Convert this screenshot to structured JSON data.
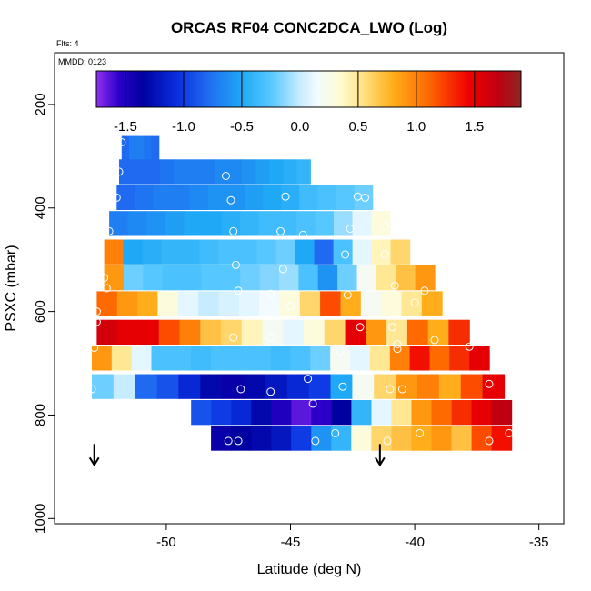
{
  "chart_data": {
    "type": "heatmap",
    "title": "ORCAS RF04 CONC2DCA_LWO (Log)",
    "annotations": [
      "Flts: 4",
      "MMDD: 0123"
    ],
    "xlabel": "Latitude (deg N)",
    "ylabel": "PSXC (mbar)",
    "xlim": [
      -54.5,
      -34
    ],
    "ylim": [
      1010,
      100
    ],
    "x_ticks": [
      -50,
      -45,
      -40,
      -35
    ],
    "x_tick_labels": [
      "-50",
      "-45",
      "-40",
      "-35"
    ],
    "y_ticks": [
      200,
      400,
      600,
      800,
      1000
    ],
    "y_tick_labels": [
      "200",
      "400",
      "600",
      "800",
      "1000"
    ],
    "colorbar": {
      "range": [
        -1.75,
        1.9
      ],
      "ticks": [
        -1.5,
        -1.0,
        -0.5,
        0.0,
        0.5,
        1.0,
        1.5
      ],
      "tick_labels": [
        "-1.5",
        "-1.0",
        "-0.5",
        "0.0",
        "0.5",
        "1.0",
        "1.5"
      ],
      "divisions": [
        -1.5,
        -1.0,
        -0.5,
        0.5,
        1.0,
        1.5
      ],
      "stops": [
        {
          "v": -1.75,
          "c": "#8f2ff0"
        },
        {
          "v": -1.55,
          "c": "#2a00c8"
        },
        {
          "v": -1.35,
          "c": "#0000a0"
        },
        {
          "v": -1.05,
          "c": "#0a2fe0"
        },
        {
          "v": -0.8,
          "c": "#1f6af0"
        },
        {
          "v": -0.5,
          "c": "#1fa8f5"
        },
        {
          "v": -0.25,
          "c": "#56c8ff"
        },
        {
          "v": 0.0,
          "c": "#c8ecff"
        },
        {
          "v": 0.15,
          "c": "#f2fbff"
        },
        {
          "v": 0.35,
          "c": "#fffbd0"
        },
        {
          "v": 0.55,
          "c": "#ffe080"
        },
        {
          "v": 0.8,
          "c": "#ffad1a"
        },
        {
          "v": 1.1,
          "c": "#ff6a00"
        },
        {
          "v": 1.45,
          "c": "#f00000"
        },
        {
          "v": 1.7,
          "c": "#c00010"
        },
        {
          "v": 1.9,
          "c": "#8f2525"
        }
      ]
    },
    "series": [
      {
        "p": 285,
        "lat0": -51.8,
        "lat1": -50.3,
        "vals": [
          -0.8,
          -0.7,
          -0.7,
          -0.75,
          -0.8
        ]
      },
      {
        "p": 330,
        "lat0": -51.9,
        "lat1": -44.2,
        "vals": [
          -0.8,
          -0.8,
          -0.8,
          -0.75,
          -0.7,
          -0.7,
          -0.7,
          -0.65,
          -0.65,
          -0.6,
          -0.55,
          -0.5,
          -0.45,
          -0.4
        ]
      },
      {
        "p": 380,
        "lat0": -52.0,
        "lat1": -41.7,
        "vals": [
          -0.8,
          -0.75,
          -0.7,
          -0.7,
          -0.65,
          -0.6,
          -0.6,
          -0.55,
          -0.5,
          -0.45,
          -0.35,
          -0.3,
          -0.25,
          -0.2
        ]
      },
      {
        "p": 430,
        "lat0": -52.3,
        "lat1": -41.0,
        "vals": [
          -0.7,
          -0.65,
          -0.6,
          -0.55,
          -0.5,
          -0.5,
          -0.45,
          -0.4,
          -0.35,
          -0.35,
          -0.3,
          -0.25,
          -0.1,
          0.1,
          0.3
        ]
      },
      {
        "p": 485,
        "lat0": -52.5,
        "lat1": -40.2,
        "vals": [
          1.0,
          -0.5,
          -0.45,
          -0.4,
          -0.4,
          -0.35,
          -0.3,
          -0.3,
          -0.25,
          -0.2,
          -0.5,
          -0.8,
          -0.3,
          0.1,
          0.4,
          0.6
        ]
      },
      {
        "p": 535,
        "lat0": -52.5,
        "lat1": -39.2,
        "vals": [
          0.9,
          -0.2,
          -0.25,
          -0.3,
          -0.3,
          -0.25,
          -0.25,
          -0.2,
          -0.15,
          -0.1,
          -0.3,
          -0.6,
          -0.2,
          0.2,
          0.5,
          0.7,
          0.9
        ]
      },
      {
        "p": 585,
        "lat0": -52.8,
        "lat1": -38.9,
        "vals": [
          1.1,
          0.9,
          0.8,
          0.3,
          0.1,
          0.0,
          0.05,
          0.1,
          0.15,
          0.3,
          0.6,
          1.2,
          0.8,
          0.2,
          0.3,
          0.5,
          0.8
        ]
      },
      {
        "p": 640,
        "lat0": -52.8,
        "lat1": -37.8,
        "vals": [
          1.6,
          1.5,
          1.5,
          1.2,
          1.0,
          0.7,
          0.6,
          0.4,
          0.2,
          0.1,
          0.3,
          0.6,
          1.5,
          0.9,
          0.5,
          1.1,
          0.8,
          1.3
        ]
      },
      {
        "p": 690,
        "lat0": -53.0,
        "lat1": -37.0,
        "vals": [
          0.9,
          0.5,
          0.1,
          -0.3,
          -0.3,
          -0.35,
          -0.3,
          -0.3,
          -0.3,
          -0.35,
          -0.3,
          -0.2,
          0.2,
          0.1,
          0.5,
          1.0,
          1.4,
          1.1,
          1.3,
          1.5
        ]
      },
      {
        "p": 745,
        "lat0": -53.0,
        "lat1": -36.4,
        "vals": [
          -0.2,
          0.0,
          -0.8,
          -0.9,
          -1.1,
          -1.3,
          -1.4,
          -1.3,
          -1.2,
          -1.1,
          -1.0,
          -0.5,
          0.2,
          0.6,
          0.9,
          1.0,
          0.8,
          1.2,
          1.5
        ]
      },
      {
        "p": 795,
        "lat0": -49.0,
        "lat1": -36.1,
        "vals": [
          -0.9,
          -1.0,
          -1.1,
          -1.3,
          -1.5,
          -1.65,
          -1.55,
          -1.35,
          -0.4,
          0.1,
          0.5,
          0.9,
          1.1,
          1.3,
          1.5,
          1.7
        ]
      },
      {
        "p": 845,
        "lat0": -48.2,
        "lat1": -36.1,
        "vals": [
          -1.4,
          -1.35,
          -1.3,
          -1.2,
          -1.0,
          -0.6,
          -0.4,
          0.3,
          0.6,
          0.7,
          0.8,
          0.9,
          0.7,
          1.2,
          1.4
        ]
      }
    ],
    "markers": [
      [
        -51.8,
        273
      ],
      [
        -51.9,
        330
      ],
      [
        -47.6,
        338
      ],
      [
        -52.0,
        380
      ],
      [
        -47.4,
        385
      ],
      [
        -45.2,
        378
      ],
      [
        -42.3,
        378
      ],
      [
        -42.0,
        380
      ],
      [
        -52.3,
        445
      ],
      [
        -47.3,
        445
      ],
      [
        -45.4,
        445
      ],
      [
        -44.5,
        452
      ],
      [
        -42.6,
        440
      ],
      [
        -41.2,
        435
      ],
      [
        -42.8,
        490
      ],
      [
        -41.2,
        490
      ],
      [
        -52.5,
        535
      ],
      [
        -47.2,
        510
      ],
      [
        -45.3,
        518
      ],
      [
        -40.8,
        550
      ],
      [
        -39.6,
        560
      ],
      [
        -52.4,
        555
      ],
      [
        -47.1,
        560
      ],
      [
        -45.8,
        566
      ],
      [
        -42.7,
        568
      ],
      [
        -40.0,
        583
      ],
      [
        -45.0,
        590
      ],
      [
        -52.8,
        600
      ],
      [
        -38.7,
        590
      ],
      [
        -52.8,
        620
      ],
      [
        -47.3,
        650
      ],
      [
        -45.8,
        650
      ],
      [
        -42.2,
        630
      ],
      [
        -40.9,
        630
      ],
      [
        -40.7,
        663
      ],
      [
        -39.2,
        655
      ],
      [
        -52.9,
        670
      ],
      [
        -43.0,
        677
      ],
      [
        -40.7,
        672
      ],
      [
        -37.8,
        668
      ],
      [
        -53.0,
        750
      ],
      [
        -47.0,
        750
      ],
      [
        -45.8,
        755
      ],
      [
        -44.3,
        730
      ],
      [
        -42.9,
        745
      ],
      [
        -41.0,
        750
      ],
      [
        -40.5,
        750
      ],
      [
        -37.0,
        740
      ],
      [
        -44.1,
        778
      ],
      [
        -47.5,
        850
      ],
      [
        -47.1,
        850
      ],
      [
        -44.0,
        850
      ],
      [
        -43.2,
        835
      ],
      [
        -41.1,
        850
      ],
      [
        -39.8,
        835
      ],
      [
        -36.2,
        835
      ],
      [
        -37.0,
        850
      ]
    ],
    "arrows": [
      [
        -52.9,
        870
      ],
      [
        -41.4,
        870
      ]
    ]
  }
}
